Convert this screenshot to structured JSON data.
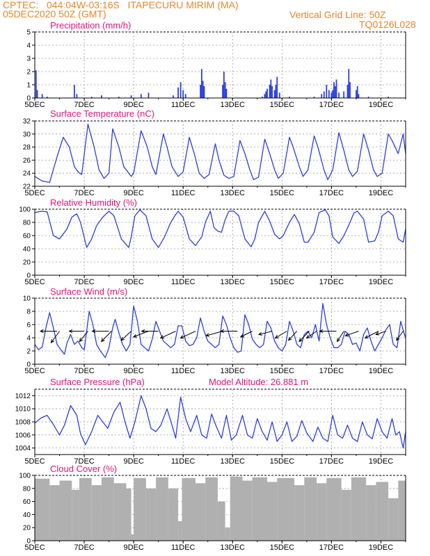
{
  "header": {
    "line1": "CPTEC:   044:04W-03:16S   ITAPECURU MIRIM (MA)",
    "line2": "05DEC2020 50Z (GMT)",
    "grid_note": "Vertical Grid Line: 50Z",
    "code": "TQ0126L028",
    "altitude_label": "Model Altitude: 26.881  m"
  },
  "colors": {
    "header": "#e8862a",
    "title": "#e0147a",
    "line": "#2b3fe0",
    "cloud": "#b0b0b0",
    "wind_arrow": "#000000"
  },
  "x_axis": {
    "labels": [
      "5DEC",
      "7DEC",
      "9DEC",
      "11DEC",
      "13DEC",
      "15DEC",
      "17DEC",
      "19DEC"
    ],
    "label_days": [
      5,
      7,
      9,
      11,
      13,
      15,
      17,
      19
    ],
    "start_day": 5,
    "end_day": 20
  },
  "chart_data": [
    {
      "title": "Precipitation (mm/h)",
      "type": "bar",
      "ylim": [
        0,
        5
      ],
      "yticks": [
        0,
        1,
        2,
        3,
        4,
        5
      ],
      "x": [
        5.05,
        5.1,
        5.3,
        5.5,
        6.6,
        6.7,
        7.3,
        7.7,
        8.4,
        8.9,
        9.3,
        9.6,
        10.6,
        10.8,
        10.9,
        11.0,
        11.1,
        11.7,
        11.75,
        11.8,
        11.85,
        12.6,
        12.65,
        12.7,
        12.75,
        14.2,
        14.3,
        14.35,
        14.4,
        14.5,
        14.55,
        14.6,
        14.7,
        14.75,
        14.8,
        14.9,
        15.3,
        16.3,
        16.6,
        16.7,
        16.8,
        16.9,
        17.0,
        17.05,
        17.1,
        17.15,
        17.2,
        17.3,
        17.5,
        17.65,
        17.7,
        17.75,
        18.0,
        18.05,
        18.1,
        18.5,
        19.3
      ],
      "values": [
        2.1,
        0.6,
        0.3,
        0.1,
        1.0,
        0.3,
        0.1,
        0.2,
        0.1,
        0.2,
        0.3,
        0.4,
        0.2,
        0.8,
        1.2,
        0.6,
        0.3,
        1.0,
        2.2,
        1.3,
        0.9,
        1.0,
        2.0,
        1.2,
        0.7,
        0.1,
        0.3,
        0.5,
        0.7,
        1.0,
        1.4,
        0.9,
        0.6,
        1.0,
        1.6,
        0.4,
        0.1,
        0.1,
        0.3,
        0.5,
        1.0,
        0.6,
        0.4,
        0.6,
        1.2,
        0.9,
        1.4,
        0.4,
        0.5,
        1.0,
        2.2,
        1.2,
        0.6,
        0.9,
        0.3,
        0.1,
        0.1
      ]
    },
    {
      "title": "Surface Temperature (nC)",
      "type": "line",
      "ylim": [
        22,
        32
      ],
      "yticks": [
        22,
        24,
        26,
        28,
        30,
        32
      ],
      "x": [
        5.0,
        5.3,
        5.6,
        5.9,
        6.15,
        6.4,
        6.6,
        6.75,
        6.9,
        7.15,
        7.4,
        7.6,
        7.8,
        8.0,
        8.15,
        8.4,
        8.6,
        8.9,
        9.0,
        9.3,
        9.55,
        9.75,
        9.9,
        10.2,
        10.35,
        10.55,
        10.8,
        11.0,
        11.25,
        11.45,
        11.65,
        11.85,
        12.05,
        12.3,
        12.45,
        12.65,
        12.85,
        13.05,
        13.3,
        13.5,
        13.7,
        13.85,
        14.05,
        14.3,
        14.5,
        14.7,
        14.85,
        15.05,
        15.3,
        15.45,
        15.7,
        15.85,
        16.05,
        16.3,
        16.45,
        16.7,
        16.85,
        17.05,
        17.3,
        17.5,
        17.7,
        17.85,
        18.05,
        18.3,
        18.5,
        18.7,
        18.85,
        19.05,
        19.3,
        19.45,
        19.7,
        19.9,
        20.0
      ],
      "values": [
        23.5,
        22.8,
        22.6,
        26.5,
        29.5,
        28.0,
        25.0,
        24.2,
        23.8,
        31.5,
        28.0,
        24.5,
        23.2,
        24.0,
        30.8,
        28.0,
        25.0,
        23.5,
        24.0,
        30.5,
        28.0,
        25.0,
        23.8,
        30.0,
        28.0,
        25.0,
        23.5,
        24.2,
        29.5,
        27.0,
        24.0,
        23.2,
        23.8,
        28.5,
        26.0,
        23.7,
        23.2,
        23.5,
        29.0,
        27.0,
        24.5,
        23.0,
        23.4,
        29.2,
        27.0,
        24.5,
        23.2,
        24.0,
        29.5,
        28.0,
        25.0,
        23.5,
        24.5,
        29.7,
        28.0,
        24.5,
        23.0,
        24.5,
        30.2,
        27.5,
        24.5,
        23.5,
        24.3,
        30.0,
        27.5,
        24.5,
        23.5,
        24.0,
        30.0,
        29.0,
        27.0,
        30.0,
        27.0
      ]
    },
    {
      "title": "Relative Humidity (%)",
      "type": "line",
      "ylim": [
        0,
        100
      ],
      "yticks": [
        0,
        20,
        40,
        60,
        80,
        100
      ],
      "x": [
        5.0,
        5.3,
        5.5,
        5.75,
        6.0,
        6.3,
        6.5,
        6.7,
        6.85,
        7.1,
        7.3,
        7.5,
        7.75,
        8.0,
        8.2,
        8.5,
        8.8,
        8.9,
        9.05,
        9.25,
        9.5,
        9.75,
        10.0,
        10.25,
        10.5,
        10.7,
        10.8,
        11.0,
        11.25,
        11.5,
        11.75,
        11.9,
        12.1,
        12.25,
        12.4,
        12.55,
        12.7,
        12.85,
        13.05,
        13.25,
        13.5,
        13.75,
        13.9,
        14.05,
        14.3,
        14.5,
        14.7,
        14.9,
        15.05,
        15.3,
        15.5,
        15.7,
        15.9,
        16.05,
        16.3,
        16.5,
        16.75,
        16.9,
        17.05,
        17.3,
        17.5,
        17.75,
        17.9,
        18.05,
        18.3,
        18.5,
        18.75,
        18.9,
        19.05,
        19.3,
        19.5,
        19.7,
        19.9,
        20.0
      ],
      "values": [
        95,
        97,
        96,
        60,
        55,
        70,
        88,
        93,
        80,
        42,
        55,
        75,
        88,
        97,
        90,
        55,
        42,
        58,
        90,
        99,
        90,
        55,
        42,
        58,
        80,
        92,
        97,
        88,
        55,
        45,
        58,
        80,
        97,
        72,
        67,
        65,
        84,
        97,
        97,
        90,
        55,
        43,
        55,
        80,
        97,
        82,
        62,
        55,
        60,
        80,
        92,
        78,
        50,
        50,
        65,
        95,
        99,
        90,
        58,
        48,
        60,
        80,
        94,
        97,
        85,
        50,
        52,
        65,
        90,
        97,
        90,
        55,
        50,
        70
      ]
    },
    {
      "title": "Surface Wind (m/s)",
      "type": "line",
      "ylim": [
        0,
        10
      ],
      "yticks": [
        0,
        2,
        4,
        6,
        8,
        10
      ],
      "x": [
        5.0,
        5.15,
        5.3,
        5.45,
        5.6,
        5.75,
        5.9,
        6.05,
        6.2,
        6.3,
        6.45,
        6.6,
        6.75,
        6.9,
        7.0,
        7.2,
        7.35,
        7.5,
        7.65,
        7.85,
        8.0,
        8.15,
        8.25,
        8.4,
        8.55,
        8.7,
        8.85,
        9.0,
        9.15,
        9.3,
        9.45,
        9.6,
        9.75,
        9.9,
        10.05,
        10.2,
        10.35,
        10.5,
        10.65,
        10.8,
        10.95,
        11.1,
        11.25,
        11.4,
        11.55,
        11.7,
        11.85,
        12.0,
        12.15,
        12.3,
        12.45,
        12.6,
        12.75,
        12.9,
        13.05,
        13.2,
        13.35,
        13.5,
        13.65,
        13.8,
        13.95,
        14.1,
        14.25,
        14.4,
        14.55,
        14.7,
        14.85,
        15.0,
        15.15,
        15.3,
        15.45,
        15.6,
        15.75,
        15.9,
        16.05,
        16.2,
        16.35,
        16.5,
        16.65,
        16.8,
        16.95,
        17.1,
        17.25,
        17.4,
        17.55,
        17.7,
        17.85,
        18.0,
        18.15,
        18.3,
        18.45,
        18.6,
        18.75,
        18.9,
        19.05,
        19.2,
        19.35,
        19.5,
        19.65,
        19.8,
        19.95,
        20.0
      ],
      "values": [
        3.0,
        2.2,
        2.6,
        5.5,
        7.8,
        5.5,
        3.0,
        2.2,
        1.5,
        3.2,
        4.5,
        3.0,
        3.5,
        2.5,
        2.2,
        8.0,
        6.0,
        3.0,
        2.0,
        1.0,
        2.5,
        5.5,
        6.8,
        4.8,
        3.0,
        2.0,
        3.0,
        8.8,
        6.5,
        3.0,
        2.5,
        2.0,
        3.8,
        6.5,
        5.0,
        3.5,
        3.0,
        2.5,
        3.0,
        5.8,
        5.8,
        3.5,
        2.8,
        3.0,
        4.0,
        7.0,
        5.0,
        3.5,
        3.0,
        2.5,
        3.0,
        7.3,
        6.0,
        4.0,
        2.5,
        1.8,
        2.0,
        7.5,
        6.0,
        3.8,
        3.0,
        2.5,
        3.0,
        6.5,
        5.5,
        3.5,
        2.5,
        2.0,
        3.0,
        6.5,
        5.0,
        3.0,
        2.5,
        4.5,
        5.0,
        4.0,
        6.0,
        3.5,
        9.2,
        6.0,
        4.0,
        2.5,
        2.5,
        3.0,
        5.0,
        4.5,
        3.0,
        3.2,
        2.0,
        4.5,
        5.5,
        3.5,
        2.0,
        3.0,
        4.0,
        5.2,
        6.0,
        3.0,
        2.5,
        6.5,
        4.5,
        4.0
      ]
    },
    {
      "title": "Surface Pressure (hPa)",
      "type": "line",
      "ylim": [
        1003,
        1013
      ],
      "yticks": [
        1004,
        1006,
        1008,
        1010,
        1012
      ],
      "x": [
        5.0,
        5.25,
        5.5,
        5.75,
        6.0,
        6.2,
        6.45,
        6.7,
        6.85,
        7.05,
        7.3,
        7.55,
        7.75,
        7.95,
        8.2,
        8.45,
        8.65,
        8.85,
        9.05,
        9.3,
        9.5,
        9.7,
        9.9,
        10.1,
        10.35,
        10.55,
        10.7,
        10.9,
        11.1,
        11.3,
        11.55,
        11.75,
        11.95,
        12.15,
        12.35,
        12.55,
        12.75,
        12.95,
        13.15,
        13.4,
        13.6,
        13.8,
        14.0,
        14.2,
        14.4,
        14.6,
        14.8,
        15.0,
        15.2,
        15.4,
        15.6,
        15.8,
        16.0,
        16.25,
        16.45,
        16.65,
        16.85,
        17.05,
        17.25,
        17.45,
        17.65,
        17.85,
        18.05,
        18.25,
        18.45,
        18.65,
        18.85,
        19.05,
        19.25,
        19.45,
        19.6,
        19.75,
        19.9,
        20.0
      ],
      "values": [
        1007.8,
        1008.6,
        1009.0,
        1007.6,
        1006.0,
        1007.5,
        1010.5,
        1009.0,
        1006.2,
        1004.5,
        1006.5,
        1009.0,
        1008.0,
        1007.0,
        1009.5,
        1011.0,
        1008.0,
        1005.5,
        1008.0,
        1012.0,
        1010.0,
        1007.0,
        1006.5,
        1007.5,
        1010.0,
        1007.5,
        1005.5,
        1011.8,
        1008.5,
        1006.5,
        1009.0,
        1006.0,
        1005.5,
        1009.2,
        1007.2,
        1005.5,
        1009.0,
        1005.2,
        1006.0,
        1009.0,
        1006.0,
        1005.5,
        1008.5,
        1006.5,
        1005.2,
        1008.0,
        1005.0,
        1006.0,
        1008.0,
        1005.0,
        1005.8,
        1008.2,
        1006.3,
        1005.0,
        1007.2,
        1005.5,
        1005.0,
        1009.0,
        1006.0,
        1005.5,
        1007.5,
        1005.5,
        1005.0,
        1008.0,
        1006.0,
        1005.4,
        1008.5,
        1006.5,
        1005.5,
        1008.5,
        1006.0,
        1006.5,
        1004.0,
        1006.5
      ]
    },
    {
      "title": "Cloud Cover (%)",
      "type": "bar",
      "ylim": [
        0,
        100
      ],
      "yticks": [
        0,
        20,
        40,
        60,
        80,
        100
      ],
      "segments": [
        [
          5.0,
          5.6,
          95
        ],
        [
          5.6,
          6.0,
          85
        ],
        [
          6.0,
          6.5,
          92
        ],
        [
          6.5,
          6.8,
          78
        ],
        [
          6.8,
          7.3,
          96
        ],
        [
          7.3,
          7.7,
          85
        ],
        [
          7.7,
          8.2,
          97
        ],
        [
          8.2,
          8.7,
          88
        ],
        [
          8.7,
          8.9,
          80
        ],
        [
          8.9,
          9.0,
          10
        ],
        [
          9.0,
          9.5,
          96
        ],
        [
          9.5,
          9.9,
          80
        ],
        [
          9.9,
          10.4,
          97
        ],
        [
          10.4,
          10.8,
          80
        ],
        [
          10.8,
          10.95,
          30
        ],
        [
          10.95,
          11.5,
          96
        ],
        [
          11.5,
          11.9,
          88
        ],
        [
          11.9,
          12.4,
          97
        ],
        [
          12.4,
          12.7,
          60
        ],
        [
          12.7,
          12.9,
          20
        ],
        [
          12.9,
          13.4,
          98
        ],
        [
          13.4,
          13.8,
          92
        ],
        [
          13.8,
          14.4,
          97
        ],
        [
          14.4,
          14.8,
          90
        ],
        [
          14.8,
          15.5,
          96
        ],
        [
          15.5,
          15.9,
          85
        ],
        [
          15.9,
          16.4,
          97
        ],
        [
          16.4,
          16.8,
          88
        ],
        [
          16.8,
          17.4,
          96
        ],
        [
          17.4,
          17.8,
          78
        ],
        [
          17.8,
          18.4,
          97
        ],
        [
          18.4,
          18.8,
          85
        ],
        [
          18.8,
          19.3,
          90
        ],
        [
          19.3,
          19.7,
          65
        ],
        [
          19.7,
          20.0,
          92
        ]
      ]
    }
  ],
  "wind_arrows": [
    {
      "t": 5.9,
      "v": 5,
      "dx": -1.0,
      "dy": 0.0
    },
    {
      "t": 6.0,
      "v": 5,
      "dx": -0.5,
      "dy": -1.0
    },
    {
      "t": 7.0,
      "v": 5,
      "dx": -0.9,
      "dy": 0.0
    },
    {
      "t": 7.15,
      "v": 5,
      "dx": -0.5,
      "dy": -0.9
    },
    {
      "t": 8.0,
      "v": 5,
      "dx": -1.0,
      "dy": 0.0
    },
    {
      "t": 8.1,
      "v": 5,
      "dx": -0.6,
      "dy": -0.9
    },
    {
      "t": 8.9,
      "v": 5,
      "dx": -0.6,
      "dy": -0.8
    },
    {
      "t": 9.6,
      "v": 5,
      "dx": -0.9,
      "dy": -0.5
    },
    {
      "t": 10.0,
      "v": 5,
      "dx": -1.0,
      "dy": 0.0
    },
    {
      "t": 10.7,
      "v": 5,
      "dx": -0.9,
      "dy": -0.6
    },
    {
      "t": 11.5,
      "v": 5,
      "dx": -0.9,
      "dy": -0.6
    },
    {
      "t": 12.6,
      "v": 5,
      "dx": -1.0,
      "dy": -0.4
    },
    {
      "t": 13.2,
      "v": 5,
      "dx": -1.0,
      "dy": 0.0
    },
    {
      "t": 13.8,
      "v": 5,
      "dx": -0.7,
      "dy": -0.5
    },
    {
      "t": 14.6,
      "v": 5,
      "dx": -0.8,
      "dy": -0.3
    },
    {
      "t": 15.2,
      "v": 5,
      "dx": -0.7,
      "dy": -0.6
    },
    {
      "t": 15.6,
      "v": 5,
      "dx": -0.5,
      "dy": -0.8
    },
    {
      "t": 16.1,
      "v": 5,
      "dx": -0.6,
      "dy": -0.9
    },
    {
      "t": 16.4,
      "v": 5,
      "dx": -0.6,
      "dy": -0.6
    },
    {
      "t": 17.2,
      "v": 5,
      "dx": -1.0,
      "dy": 0.0
    },
    {
      "t": 17.5,
      "v": 5,
      "dx": -0.4,
      "dy": -0.9
    },
    {
      "t": 18.1,
      "v": 5,
      "dx": -0.8,
      "dy": -0.4
    },
    {
      "t": 18.9,
      "v": 5,
      "dx": -0.8,
      "dy": -0.6
    },
    {
      "t": 19.2,
      "v": 5,
      "dx": -0.6,
      "dy": -0.3
    },
    {
      "t": 19.9,
      "v": 5,
      "dx": -0.4,
      "dy": -0.8
    }
  ]
}
